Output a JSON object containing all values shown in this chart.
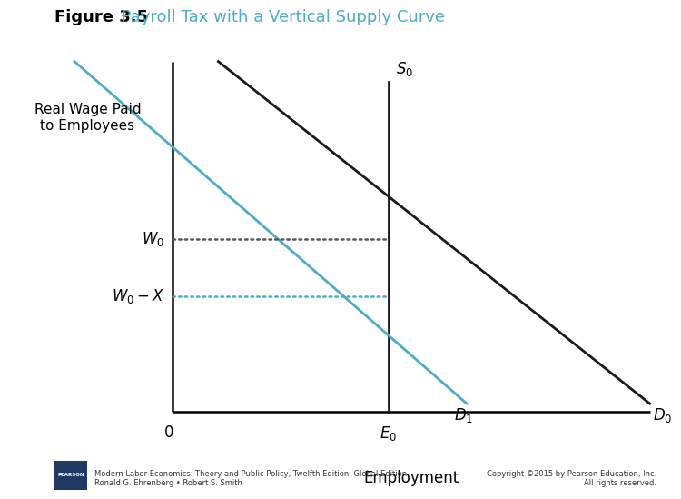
{
  "title_bold": "Figure 3.5",
  "title_color_part": "  Payroll Tax with a Vertical Supply Curve",
  "title_color": "#4BACC6",
  "title_bold_color": "#000000",
  "title_fontsize": 13,
  "ylabel": "Real Wage Paid\nto Employees",
  "xlabel": "Employment",
  "xlabel_fontsize": 12,
  "ylabel_fontsize": 11,
  "footer_left": "Modern Labor Economics: Theory and Public Policy, Twelfth Edition, Global Edition\nRonald G. Ehrenberg • Robert S. Smith",
  "footer_right": "Copyright ©2015 by Pearson Education, Inc.\nAll rights reserved.",
  "bg_color": "#FFFFFF",
  "demand_D0_color": "#1a1a1a",
  "demand_D1_color": "#4BACC6",
  "supply_color": "#1a1a1a",
  "dotted_W0_color": "#555555",
  "dotted_W0X_color": "#4BACC6",
  "xlim": [
    0,
    10
  ],
  "ylim": [
    0,
    10
  ],
  "ax_x0": 2.5,
  "ax_y0": 1.0,
  "E0_x": 5.8,
  "W0_y": 5.2,
  "W0X_y": 3.8,
  "S0_x": 5.8,
  "D0_x1": 3.2,
  "D0_y1": 9.5,
  "D0_x2": 9.8,
  "D0_y2": 1.2,
  "D1_x1": 1.0,
  "D1_y1": 9.5,
  "D1_x2": 7.0,
  "D1_y2": 1.2,
  "S0_y_top": 9.0,
  "S0_y_bot": 1.0,
  "label_S0": "$S_0$",
  "label_D0": "$D_0$",
  "label_D1": "$D_1$",
  "label_W0": "$W_0$",
  "label_W0X": "$W_0 - X$",
  "label_E0": "$E_0$",
  "label_zero": "0",
  "pearson_color": "#1F3864",
  "label_fontsize": 11
}
